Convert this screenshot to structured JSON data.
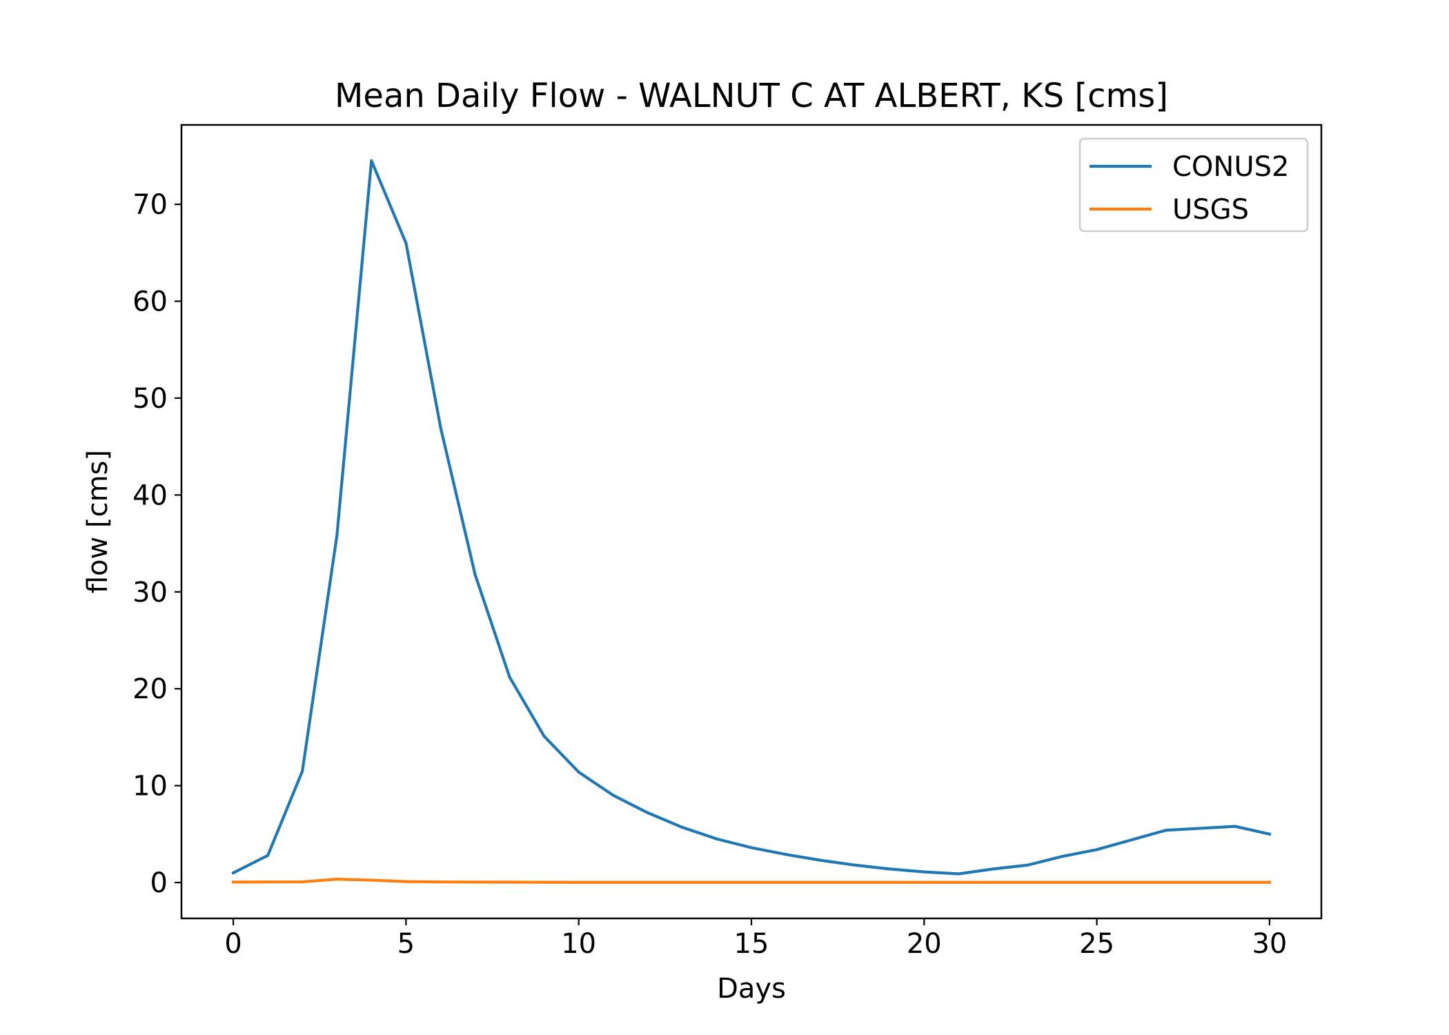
{
  "chart_data": {
    "type": "line",
    "title": "Mean Daily Flow - WALNUT C AT ALBERT, KS [cms]",
    "xlabel": "Days",
    "ylabel": "flow [cms]",
    "xlim": [
      -1.5,
      31.5
    ],
    "ylim": [
      -3.7,
      78.2
    ],
    "xticks": [
      0,
      5,
      10,
      15,
      20,
      25,
      30
    ],
    "yticks": [
      0,
      10,
      20,
      30,
      40,
      50,
      60,
      70
    ],
    "grid": false,
    "legend_position": "top-right",
    "x": [
      0,
      1,
      2,
      3,
      4,
      5,
      6,
      7,
      8,
      9,
      10,
      11,
      12,
      13,
      14,
      15,
      16,
      17,
      18,
      19,
      20,
      21,
      22,
      23,
      24,
      25,
      26,
      27,
      28,
      29,
      30
    ],
    "series": [
      {
        "name": "CONUS2",
        "color": "#1f77b4",
        "values": [
          1.0,
          2.8,
          11.5,
          35.8,
          74.5,
          66.0,
          47.0,
          31.8,
          21.2,
          15.1,
          11.4,
          9.0,
          7.2,
          5.7,
          4.5,
          3.6,
          2.9,
          2.3,
          1.8,
          1.4,
          1.1,
          0.9,
          1.4,
          1.8,
          2.7,
          3.4,
          4.4,
          5.4,
          5.6,
          5.8,
          5.0
        ]
      },
      {
        "name": "USGS",
        "color": "#ff7f0e",
        "values": [
          0.05,
          0.06,
          0.07,
          0.35,
          0.25,
          0.1,
          0.06,
          0.05,
          0.04,
          0.03,
          0.02,
          0.02,
          0.02,
          0.02,
          0.02,
          0.02,
          0.02,
          0.02,
          0.02,
          0.02,
          0.02,
          0.02,
          0.02,
          0.02,
          0.02,
          0.02,
          0.02,
          0.02,
          0.02,
          0.02,
          0.02
        ]
      }
    ]
  }
}
